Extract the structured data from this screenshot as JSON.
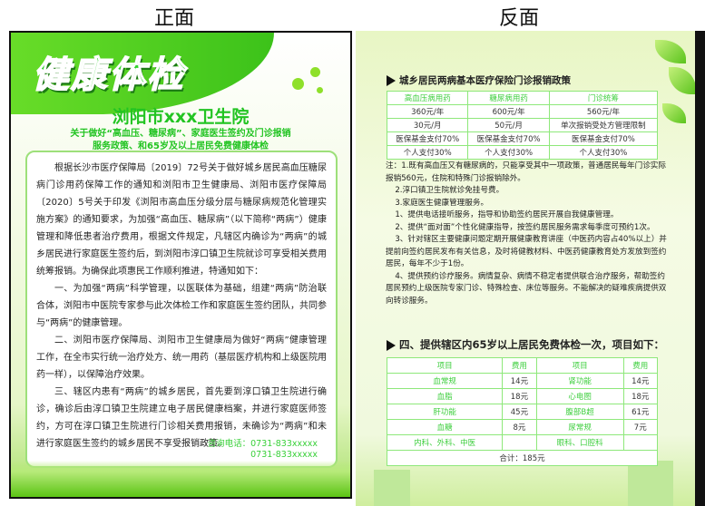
{
  "labels": {
    "front": "正面",
    "back": "反面"
  },
  "front": {
    "headline": "健康体检",
    "hospital": "浏阳市xxx卫生院",
    "subtitle_lines": [
      "关于做好“高血压、糖尿病”、家庭医生签约及门诊报销",
      "服务政策、和65岁及以上居民免费健康体检"
    ],
    "paragraphs": [
      "根据长沙市医疗保障局〔2019〕72号关于做好城乡居民高血压糖尿病门诊用药保障工作的通知和浏阳市卫生健康局、浏阳市医疗保障局〔2020〕5号关于印发《浏阳市高血压分级分层与糖尿病规范化管理实施方案》的通知要求，为加强“高血压、糖尿病”（以下简称“两病”）健康管理和降低患者治疗费用，根据文件规定，凡辖区内确诊为“两病”的城乡居民进行家庭医生签约后，到浏阳市淳口镇卫生院就诊可享受相关费用统筹报销。为确保此项惠民工作顺利推进，特通知如下：",
      "一、为加强“两病”科学管理，以医联体为基础，组建“两病”防治联合体，浏阳市中医院专家参与此次体检工作和家庭医生签约团队，共同参与“两病”的健康管理。",
      "二、浏阳市医疗保障局、浏阳市卫生健康局为做好“两病”健康管理工作，在全市实行统一治疗处方、统一用药（基层医疗机构和上级医院用药一样），以保障治疗效果。",
      "三、辖区内患有“两病”的城乡居民，首先要到淳口镇卫生院进行确诊，确诊后由淳口镇卫生院建立电子居民健康档案，并进行家庭医师签约，方可在淳口镇卫生院进行门诊相关费用报销，未确诊为“两病”和未进行家庭医生签约的城乡居民不享受报销政策。"
    ],
    "phone_label": "咨询电话：0731-833xxxxx",
    "phone_2": "0731-833xxxxx"
  },
  "back": {
    "section1": "城乡居民两病基本医疗保险门诊报销政策",
    "table1": {
      "headers": [
        "高血压病用药",
        "糖尿病用药",
        "门诊统筹"
      ],
      "rows": [
        [
          "360元/年",
          "600元/年",
          "560元/年"
        ],
        [
          "30元/月",
          "50元/月",
          "单次报销受处方管理限制"
        ],
        [
          "医保基金支付70%",
          "医保基金支付70%",
          "医保基金支付70%"
        ],
        [
          "个人支付30%",
          "个人支付30%",
          "个人支付30%"
        ]
      ]
    },
    "notes": [
      "注：1.既有高血压又有糖尿病的，只能享受其中一项政策，普通居民每年门诊实际报销560元，住院和特殊门诊报销除外。",
      "2.淳口镇卫生院就诊免挂号费。",
      "3.家庭医生健康管理服务。",
      "1、提供电话接听服务，指导和协助签约居民开展自我健康管理。",
      "2、提供“面对面”个性化健康指导，按签约居民服务需求每季度可预约1次。",
      "3、针对辖区主要健康问题定期开展健康教育讲座（中医药内容占40%以上）并提前向签约居民发布有关信息，及时将健教材料、中医药健康教育处方发放到签约居民，每年不少于1份。",
      "4、提供预约诊疗服务。病情复杂、病情不稳定者提供联合治疗服务，帮助签约居民预约上级医院专家门诊、特殊检查、床位等服务。不能解决的疑难疾病提供双向转诊服务。"
    ],
    "section2": "四、提供辖区内65岁以上居民免费体检一次，项目如下：",
    "table2": {
      "headers": [
        "项目",
        "费用",
        "项目",
        "费用"
      ],
      "rows": [
        [
          "血常规",
          "14元",
          "肾功能",
          "14元"
        ],
        [
          "血脂",
          "18元",
          "心电图",
          "18元"
        ],
        [
          "肝功能",
          "45元",
          "腹部B超",
          "61元"
        ],
        [
          "血糖",
          "8元",
          "尿常规",
          "7元"
        ],
        [
          "内科、外科、中医",
          "",
          "眼科、口腔科",
          ""
        ]
      ],
      "total": "合计：185元"
    }
  },
  "colors": {
    "accent": "#2fd22a",
    "table_border": "#8ee87a"
  }
}
